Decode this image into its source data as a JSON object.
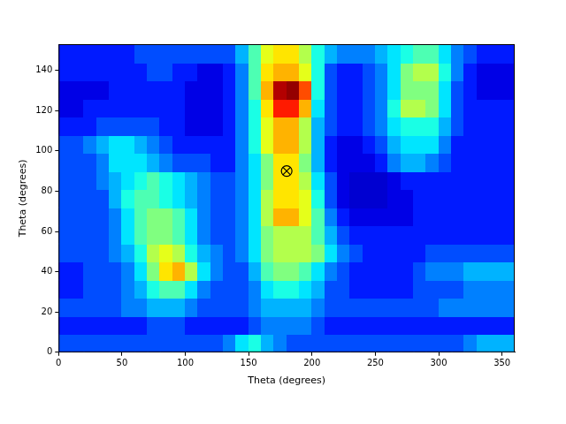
{
  "chart_data": {
    "type": "heatmap",
    "x_label": "Theta (degrees)",
    "y_label": "Theta (degrees)",
    "xlim": [
      0,
      360
    ],
    "ylim": [
      0,
      153
    ],
    "xticks": [
      0,
      50,
      100,
      150,
      200,
      250,
      300,
      350
    ],
    "yticks": [
      0,
      20,
      40,
      60,
      80,
      100,
      120,
      140
    ],
    "grid": false,
    "color": "jet",
    "color_range": [
      0,
      10
    ],
    "x_edges": [
      0,
      10,
      20,
      30,
      40,
      50,
      60,
      70,
      80,
      90,
      100,
      110,
      120,
      130,
      140,
      150,
      160,
      170,
      180,
      190,
      200,
      210,
      220,
      230,
      240,
      250,
      260,
      270,
      280,
      290,
      300,
      310,
      320,
      330,
      340,
      350,
      360
    ],
    "y_edges": [
      0,
      9,
      18,
      27,
      36,
      45,
      54,
      63,
      72,
      81,
      90,
      99,
      108,
      117,
      126,
      135,
      144,
      153
    ],
    "cells": [
      [
        2,
        2,
        2,
        2,
        2,
        2,
        2,
        2,
        2,
        2,
        2,
        2,
        2,
        2.5,
        3.5,
        4,
        3,
        2.5,
        2,
        2,
        2,
        2,
        2,
        2,
        2,
        2,
        2,
        2,
        2,
        2,
        2,
        2,
        2.5,
        3,
        3,
        3
      ],
      [
        1.5,
        1.5,
        1.5,
        1.5,
        1.5,
        1.5,
        1.5,
        2,
        2,
        2,
        1.5,
        1.5,
        1.5,
        1.5,
        1.5,
        2,
        2.5,
        2.5,
        2.5,
        2.5,
        2,
        1.5,
        1.5,
        1.5,
        1.5,
        1.5,
        1.5,
        1.5,
        1.5,
        1.5,
        1.5,
        1.5,
        1.5,
        1.5,
        1.5,
        1.5
      ],
      [
        2,
        2,
        2,
        2,
        2,
        2.5,
        2.5,
        3,
        3,
        3,
        2.5,
        2,
        2,
        2,
        2,
        2.5,
        3,
        3,
        3,
        3,
        2.5,
        2,
        2,
        2,
        2,
        2,
        2,
        2,
        2,
        2,
        2.5,
        2.5,
        2.5,
        2.5,
        2.5,
        2.5
      ],
      [
        1.5,
        1.5,
        2,
        2,
        2,
        2.5,
        3,
        4,
        4.5,
        4.5,
        3.5,
        2.5,
        2,
        2,
        2,
        2.5,
        3.5,
        4,
        4,
        3.5,
        3,
        2,
        2,
        1.5,
        1.5,
        1.5,
        1.5,
        1.5,
        2,
        2,
        2,
        2,
        2.5,
        2.5,
        2.5,
        2.5
      ],
      [
        1.5,
        1.5,
        2,
        2,
        2,
        2.5,
        3.5,
        5,
        6.5,
        7,
        5.5,
        3.5,
        2.5,
        2,
        2,
        3,
        4.5,
        5,
        5,
        4.5,
        3.5,
        2.5,
        2,
        1.5,
        1.5,
        1.5,
        1.5,
        1.5,
        2,
        2.5,
        2.5,
        2.5,
        3,
        3,
        3,
        3
      ],
      [
        2,
        2,
        2,
        2,
        2.5,
        3,
        4,
        5.5,
        6,
        5.5,
        4,
        3,
        2.5,
        2,
        2.5,
        3.5,
        5,
        5.5,
        5.5,
        5.5,
        5,
        3.5,
        2.5,
        2,
        1.5,
        1.5,
        1.5,
        1.5,
        1.5,
        2,
        2,
        2,
        2,
        2,
        2,
        2
      ],
      [
        2,
        2,
        2,
        2,
        2.5,
        3.5,
        4.5,
        5,
        5,
        4.5,
        3.5,
        2.5,
        2,
        2,
        2.5,
        3.5,
        5,
        5.5,
        5.5,
        5.5,
        4.5,
        3,
        2,
        1.5,
        1.5,
        1.5,
        1.5,
        1.5,
        1.5,
        1.5,
        1.5,
        1.5,
        1.5,
        1.5,
        1.5,
        1.5
      ],
      [
        2,
        2,
        2,
        2,
        2.5,
        3.5,
        4.5,
        5,
        5,
        4.5,
        3.5,
        2.5,
        2,
        2,
        2.5,
        3.5,
        5.5,
        7,
        7,
        6,
        4.5,
        2.5,
        1.5,
        1,
        1,
        1,
        1,
        1,
        1.5,
        1.5,
        1.5,
        1.5,
        1.5,
        1.5,
        1.5,
        1.5
      ],
      [
        2,
        2,
        2,
        2,
        3,
        4,
        4.5,
        4.5,
        4,
        3.5,
        3,
        2.5,
        2,
        2,
        2.5,
        3.5,
        5.5,
        6.5,
        6.5,
        6,
        4,
        2,
        1,
        0.8,
        0.8,
        0.8,
        1,
        1,
        1.5,
        1.5,
        1.5,
        1.5,
        1.5,
        1.5,
        1.5,
        1.5
      ],
      [
        2,
        2,
        2,
        2.5,
        3,
        3.5,
        4,
        4.5,
        4,
        3.5,
        3,
        2.5,
        2,
        2,
        2.5,
        3.5,
        5,
        6.5,
        6.5,
        5.5,
        3.5,
        2,
        1,
        0.8,
        0.8,
        0.8,
        1,
        1.5,
        1.5,
        1.5,
        1.5,
        1.5,
        1.5,
        1.5,
        1.5,
        1.5
      ],
      [
        2,
        2,
        2,
        2.5,
        3.5,
        3.5,
        3.5,
        3,
        2.5,
        2,
        2,
        2,
        1.5,
        1.5,
        2.5,
        3.5,
        5,
        6.5,
        6.5,
        5,
        3,
        1.5,
        1,
        1,
        1,
        1.5,
        2.5,
        3,
        3,
        2.5,
        2,
        1.5,
        1.5,
        1.5,
        1.5,
        1.5
      ],
      [
        2,
        2,
        2.5,
        3,
        3.5,
        3.5,
        3,
        2.5,
        2,
        1.5,
        1.5,
        1.5,
        1.5,
        1.5,
        2.5,
        4,
        6,
        7,
        7,
        5.5,
        3,
        1.5,
        1,
        1,
        1.5,
        2,
        3,
        3.5,
        3.5,
        3.5,
        2.5,
        1.5,
        1.5,
        1.5,
        1.5,
        1.5
      ],
      [
        1.5,
        1.5,
        1.5,
        2,
        2,
        2,
        2,
        2,
        1.5,
        1.5,
        1,
        1,
        1,
        1.5,
        2.5,
        4,
        6,
        7,
        7,
        5.5,
        3,
        2,
        1.5,
        1.5,
        2,
        2.5,
        3.5,
        4,
        4,
        4,
        3,
        2,
        1.5,
        1.5,
        1.5,
        1.5
      ],
      [
        1,
        1,
        1.5,
        1.5,
        1.5,
        1.5,
        1.5,
        1.5,
        1.5,
        1.5,
        1,
        1,
        1,
        1.5,
        2.5,
        4,
        6.5,
        8.5,
        8.5,
        7,
        3.5,
        2,
        1.5,
        1.5,
        2,
        2.5,
        4,
        5.5,
        5.5,
        5,
        3.5,
        2,
        1.5,
        1.5,
        1.5,
        1.5
      ],
      [
        1,
        1,
        1,
        1,
        1.5,
        1.5,
        1.5,
        1.5,
        1.5,
        1.5,
        1,
        1,
        1,
        1.5,
        2.5,
        4.5,
        7,
        9.5,
        9.8,
        8,
        4,
        2,
        1.5,
        1.5,
        2,
        2.5,
        3.5,
        5,
        5,
        5,
        3.5,
        2,
        1.5,
        1,
        1,
        1
      ],
      [
        1.5,
        1.5,
        1.5,
        1.5,
        1.5,
        1.5,
        1.5,
        2,
        2,
        1.5,
        1.5,
        1,
        1,
        1.5,
        2.5,
        4.5,
        6.5,
        7,
        7,
        6,
        4,
        2,
        1.5,
        1.5,
        2,
        2.5,
        3.5,
        5,
        5.5,
        5.5,
        4,
        2.5,
        1.5,
        1,
        1,
        1
      ],
      [
        1.5,
        1.5,
        1.5,
        1.5,
        1.5,
        1.5,
        2,
        2,
        2,
        2,
        2,
        2,
        2,
        2,
        3,
        4.5,
        6,
        6.5,
        6.5,
        5.5,
        4,
        3,
        2.5,
        2.5,
        2.5,
        3,
        3.5,
        4,
        4.5,
        4.5,
        3.5,
        2.5,
        2,
        1.5,
        1.5,
        1.5
      ]
    ],
    "highlight": {
      "x": 180,
      "y": 90
    },
    "marker": "circle-x"
  }
}
